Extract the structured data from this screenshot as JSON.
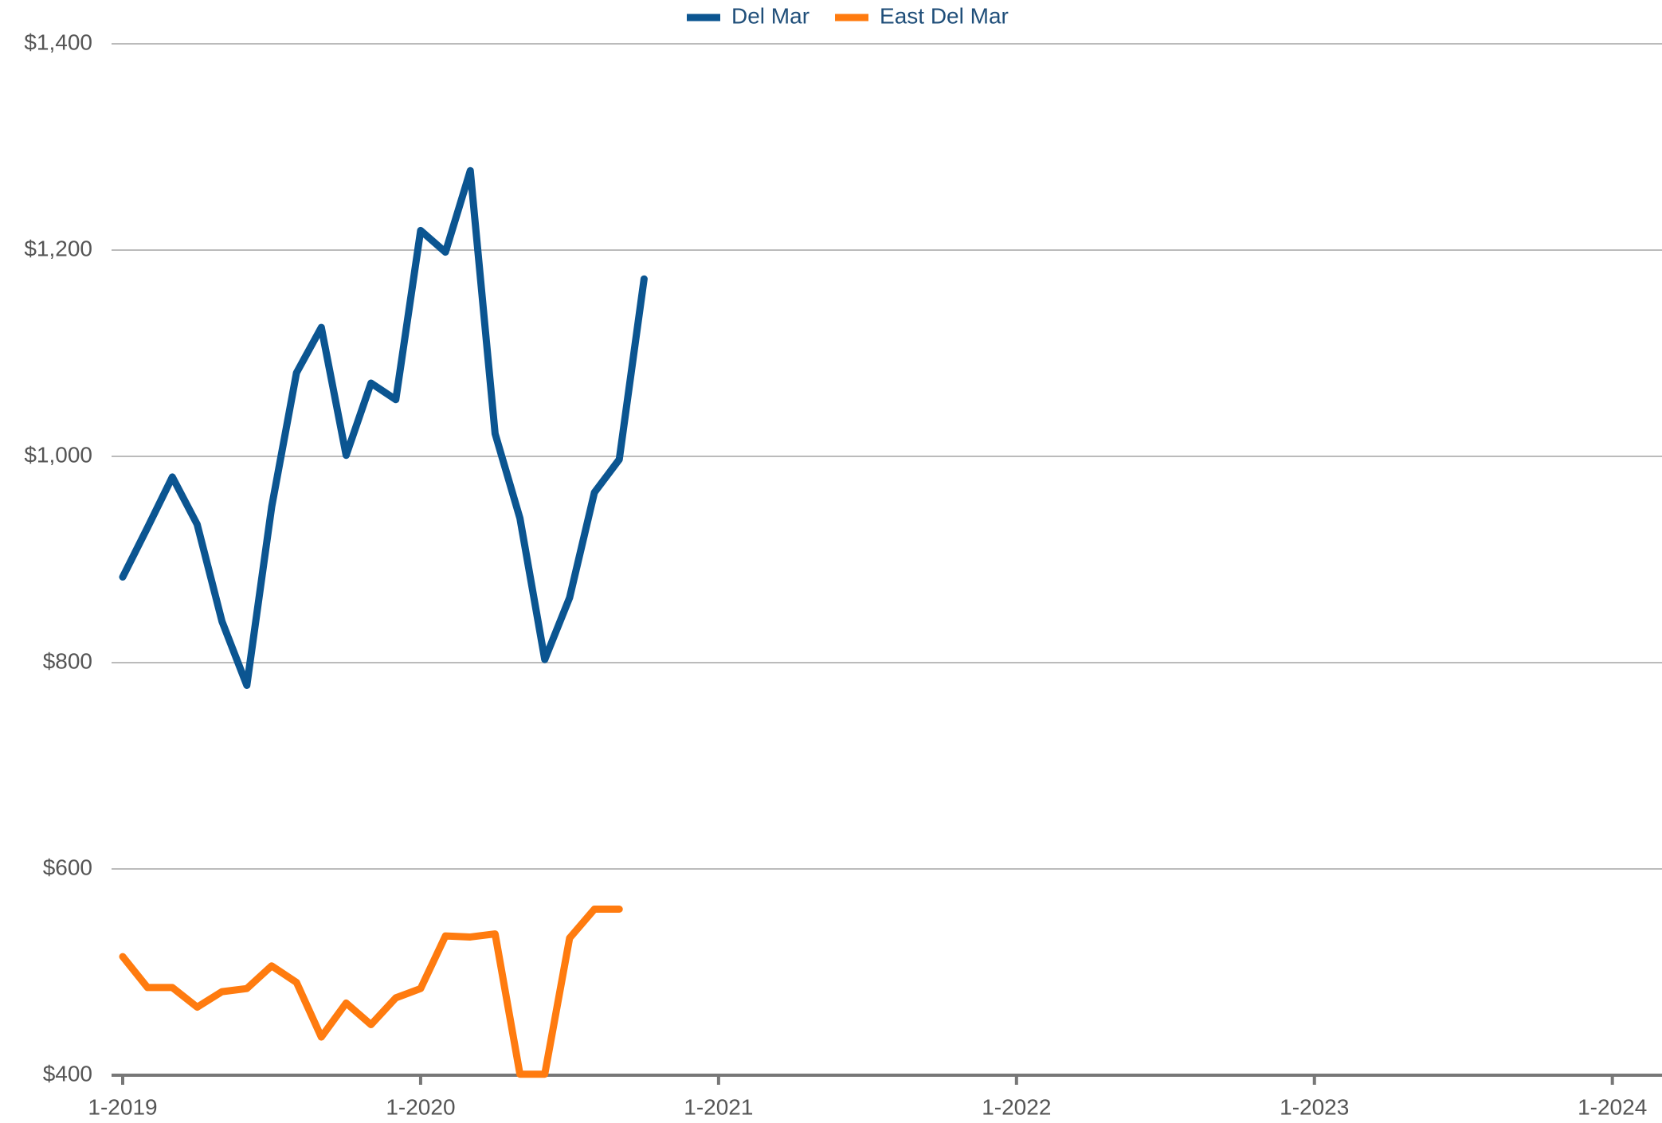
{
  "chart_data": {
    "type": "line",
    "x": [
      "1-2019",
      "2-2019",
      "3-2019",
      "4-2019",
      "5-2019",
      "6-2019",
      "7-2019",
      "8-2019",
      "9-2019",
      "10-2019",
      "11-2019",
      "12-2019",
      "1-2020",
      "2-2020",
      "3-2020",
      "4-2020",
      "5-2020",
      "6-2020",
      "7-2020",
      "8-2020",
      "9-2020",
      "10-2020"
    ],
    "series": [
      {
        "name": "Del Mar",
        "color": "#0b5591",
        "values": [
          883,
          931,
          980,
          934,
          840,
          778,
          951,
          1081,
          1125,
          1001,
          1071,
          1055,
          1219,
          1198,
          1277,
          1022,
          940,
          803,
          863,
          965,
          997,
          1172
        ]
      },
      {
        "name": "East Del Mar",
        "color": "#ff7b0f",
        "values": [
          515,
          485,
          485,
          466,
          481,
          484,
          506,
          490,
          437,
          470,
          449,
          475,
          484,
          535,
          534,
          537,
          401,
          401,
          533,
          561,
          561,
          null
        ]
      }
    ],
    "xlim": [
      "1-2019",
      "3-2024"
    ],
    "xticks": [
      "1-2019",
      "1-2020",
      "1-2021",
      "1-2022",
      "1-2023",
      "1-2024"
    ],
    "ylim": [
      400,
      1400
    ],
    "yticks": [
      {
        "value": 400,
        "label": "$400"
      },
      {
        "value": 600,
        "label": "$600"
      },
      {
        "value": 800,
        "label": "$800"
      },
      {
        "value": 1000,
        "label": "$1,000"
      },
      {
        "value": 1200,
        "label": "$1,200"
      },
      {
        "value": 1400,
        "label": "$1,400"
      }
    ],
    "grid": true,
    "legend": "top"
  }
}
